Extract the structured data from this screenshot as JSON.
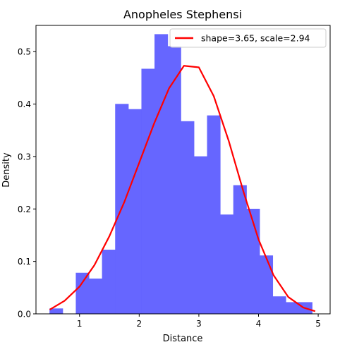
{
  "chart_data": {
    "type": "bar",
    "title": "Anopheles Stephensi",
    "xlabel": "Distance",
    "ylabel": "Density",
    "xlim": [
      0.27,
      5.2
    ],
    "ylim": [
      0,
      0.55
    ],
    "xticks": [
      1,
      2,
      3,
      4,
      5
    ],
    "yticks": [
      0.0,
      0.1,
      0.2,
      0.3,
      0.4,
      0.5
    ],
    "grid": false,
    "legend_position": "top-right",
    "histogram": {
      "color": "#6666ff",
      "bin_edges": [
        0.5,
        0.72,
        0.94,
        1.16,
        1.38,
        1.6,
        1.82,
        2.04,
        2.26,
        2.48,
        2.7,
        2.92,
        3.14,
        3.36,
        3.58,
        3.8,
        4.02,
        4.24,
        4.46,
        4.68,
        4.9
      ],
      "values": [
        0.01,
        0.0,
        0.078,
        0.067,
        0.122,
        0.4,
        0.39,
        0.467,
        0.533,
        0.51,
        0.367,
        0.3,
        0.378,
        0.189,
        0.245,
        0.2,
        0.111,
        0.033,
        0.022,
        0.022
      ]
    },
    "series": [
      {
        "name": "shape=3.65, scale=2.94",
        "type": "line",
        "color": "#ff0000",
        "x": [
          0.5,
          0.75,
          1.0,
          1.25,
          1.5,
          1.75,
          2.0,
          2.25,
          2.5,
          2.75,
          3.0,
          3.25,
          3.5,
          3.75,
          4.0,
          4.25,
          4.5,
          4.75,
          4.95
        ],
        "y": [
          0.008,
          0.025,
          0.052,
          0.093,
          0.148,
          0.213,
          0.288,
          0.363,
          0.43,
          0.473,
          0.47,
          0.415,
          0.33,
          0.232,
          0.142,
          0.074,
          0.032,
          0.012,
          0.005
        ]
      }
    ]
  }
}
